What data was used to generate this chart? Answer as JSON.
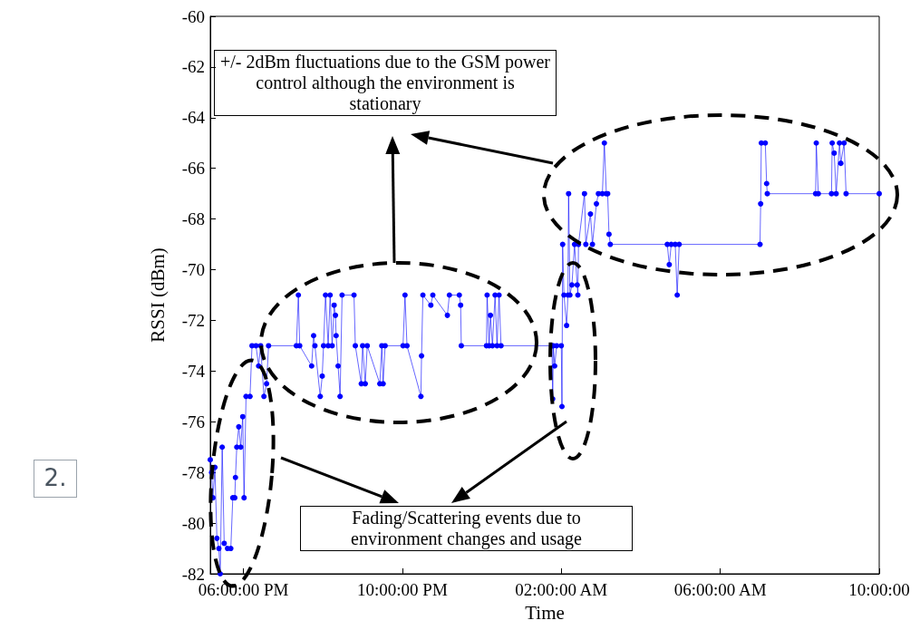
{
  "chart_data": {
    "type": "line",
    "xlabel": "Time",
    "ylabel": "RSSI (dBm)",
    "annotations": [
      "+/- 2dBm fluctuations due to the GSM power control although the environment is stationary",
      "Fading/Scattering events due to environment changes and usage",
      "2."
    ],
    "x": [
      "2000-01-01T17:10",
      "2000-01-01T17:12",
      "2000-01-01T17:14",
      "2000-01-01T17:17",
      "2000-01-01T17:20",
      "2000-01-01T17:23",
      "2000-01-01T17:25",
      "2000-01-01T17:28",
      "2000-01-01T17:31",
      "2000-01-01T17:36",
      "2000-01-01T17:41",
      "2000-01-01T17:44",
      "2000-01-01T17:47",
      "2000-01-01T17:48",
      "2000-01-01T17:50",
      "2000-01-01T17:53",
      "2000-01-01T17:56",
      "2000-01-01T17:59",
      "2000-01-01T18:01",
      "2000-01-01T18:04",
      "2000-01-01T18:10",
      "2000-01-01T18:13",
      "2000-01-01T18:19",
      "2000-01-01T18:23",
      "2000-01-01T18:26",
      "2000-01-01T18:31",
      "2000-01-01T18:35",
      "2000-01-01T18:38",
      "2000-01-01T19:20",
      "2000-01-01T19:23",
      "2000-01-01T19:25",
      "2000-01-01T19:43",
      "2000-01-01T19:46",
      "2000-01-01T19:48",
      "2000-01-01T19:56",
      "2000-01-01T19:59",
      "2000-01-01T20:01",
      "2000-01-01T20:04",
      "2000-01-01T20:08",
      "2000-01-01T20:11",
      "2000-01-01T20:14",
      "2000-01-01T20:17",
      "2000-01-01T20:19",
      "2000-01-01T20:20",
      "2000-01-01T20:23",
      "2000-01-01T20:26",
      "2000-01-01T20:29",
      "2000-01-01T20:47",
      "2000-01-01T20:49",
      "2000-01-01T20:58",
      "2000-01-01T21:00",
      "2000-01-01T21:04",
      "2000-01-01T21:07",
      "2000-01-01T21:26",
      "2000-01-01T21:29",
      "2000-01-01T21:31",
      "2000-01-01T21:34",
      "2000-01-01T22:01",
      "2000-01-01T22:04",
      "2000-01-01T22:07",
      "2000-01-01T22:28",
      "2000-01-01T22:29",
      "2000-01-01T22:31",
      "2000-01-01T22:43",
      "2000-01-01T22:46",
      "2000-01-01T23:08",
      "2000-01-01T23:11",
      "2000-01-01T23:26",
      "2000-01-01T23:28",
      "2000-01-01T23:29",
      "2000-01-02T00:07",
      "2000-01-02T00:08",
      "2000-01-02T00:11",
      "2000-01-02T00:13",
      "2000-01-02T00:16",
      "2000-01-02T00:20",
      "2000-01-02T00:23",
      "2000-01-02T00:26",
      "2000-01-02T00:29",
      "2000-01-02T01:46",
      "2000-01-02T01:47",
      "2000-01-02T01:48",
      "2000-01-02T01:50",
      "2000-01-02T01:53",
      "2000-01-02T02:00",
      "2000-01-02T02:01",
      "2000-01-02T02:02",
      "2000-01-02T02:04",
      "2000-01-02T02:08",
      "2000-01-02T02:10",
      "2000-01-02T02:11",
      "2000-01-02T02:13",
      "2000-01-02T02:16",
      "2000-01-02T02:20",
      "2000-01-02T02:24",
      "2000-01-02T02:25",
      "2000-01-02T02:26",
      "2000-01-02T02:35",
      "2000-01-02T02:37",
      "2000-01-02T02:44",
      "2000-01-02T02:47",
      "2000-01-02T02:53",
      "2000-01-02T02:56",
      "2000-01-02T03:02",
      "2000-01-02T03:05",
      "2000-01-02T03:08",
      "2000-01-02T03:10",
      "2000-01-02T03:12",
      "2000-01-02T03:14",
      "2000-01-02T04:40",
      "2000-01-02T04:43",
      "2000-01-02T04:46",
      "2000-01-02T04:52",
      "2000-01-02T04:55",
      "2000-01-02T04:58",
      "2000-01-02T07:00",
      "2000-01-02T07:01",
      "2000-01-02T07:02",
      "2000-01-02T07:08",
      "2000-01-02T07:10",
      "2000-01-02T07:11",
      "2000-01-02T08:24",
      "2000-01-02T08:25",
      "2000-01-02T08:28",
      "2000-01-02T08:48",
      "2000-01-02T08:49",
      "2000-01-02T08:52",
      "2000-01-02T08:55",
      "2000-01-02T09:00",
      "2000-01-02T09:02",
      "2000-01-02T09:07",
      "2000-01-02T09:10",
      "2000-01-02T10:00"
    ],
    "series": [
      {
        "color": "#0000ff",
        "values": [
          -77.5,
          -78,
          -79,
          -77.8,
          -80.6,
          -81,
          -82,
          -77,
          -80.8,
          -81,
          -81,
          -79,
          -79,
          -78.2,
          -77,
          -76.2,
          -77,
          -75.8,
          -79,
          -75,
          -75,
          -73,
          -73,
          -73.8,
          -73,
          -75,
          -74.5,
          -73,
          -73,
          -71,
          -73,
          -73.8,
          -72.6,
          -73,
          -75,
          -74.2,
          -73,
          -71,
          -73,
          -71,
          -73,
          -71.4,
          -71.8,
          -72.6,
          -73.8,
          -75,
          -71,
          -71,
          -73,
          -74.5,
          -73,
          -74.5,
          -73,
          -74.5,
          -73,
          -74.5,
          -73,
          -73,
          -71,
          -73,
          -75,
          -73.4,
          -71,
          -71.4,
          -71,
          -71.8,
          -71,
          -71,
          -71.4,
          -73,
          -73,
          -71,
          -73,
          -71.8,
          -73,
          -71,
          -73,
          -71,
          -73,
          -73,
          -75.1,
          -73,
          -73.8,
          -73,
          -73,
          -75.4,
          -69,
          -71,
          -72.2,
          -71,
          -67,
          -71,
          -70.6,
          -69,
          -70.6,
          -71,
          -69,
          -67,
          -69,
          -67.8,
          -69,
          -67.4,
          -67,
          -67,
          -65,
          -67,
          -67,
          -68.6,
          -69,
          -69,
          -69.8,
          -69,
          -69,
          -71,
          -69,
          -69,
          -67.4,
          -65,
          -65,
          -66.6,
          -67,
          -67,
          -65,
          -67,
          -67,
          -65,
          -65.4,
          -67,
          -65,
          -65.8,
          -65,
          -67,
          -67
        ]
      }
    ],
    "xlim": [
      "2000-01-01T17:10",
      "2000-01-02T10:00"
    ],
    "ylim": [
      -82,
      -60
    ],
    "xticks": [
      {
        "value": "2000-01-01T18:00",
        "label": "06:00:00 PM"
      },
      {
        "value": "2000-01-01T22:00",
        "label": "10:00:00 PM"
      },
      {
        "value": "2000-01-02T02:00",
        "label": "02:00:00 AM"
      },
      {
        "value": "2000-01-02T06:00",
        "label": "06:00:00 AM"
      },
      {
        "value": "2000-01-02T10:00",
        "label": "10:00:00"
      }
    ],
    "yticks": [
      -82,
      -80,
      -78,
      -76,
      -74,
      -72,
      -70,
      -68,
      -66,
      -64,
      -62,
      -60
    ],
    "marker": "circle",
    "line_style": "solid"
  }
}
